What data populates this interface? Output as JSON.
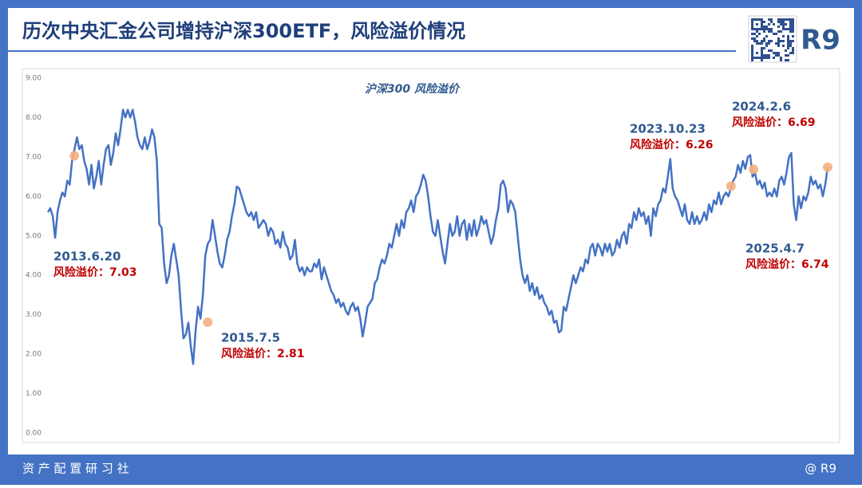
{
  "header": {
    "title": "历次中央汇金公司增持沪深300ETF，风险溢价情况",
    "logo": "R9"
  },
  "footer": {
    "left": "资 产 配 置 研 习 社",
    "right": "@ R9"
  },
  "chart_data": {
    "type": "line",
    "title": "沪深300 风险溢价",
    "color": "#4472c4",
    "ylim": [
      0,
      9
    ],
    "yticks": [
      {
        "value": 0,
        "label": "0.00"
      },
      {
        "value": 1,
        "label": "1.00"
      },
      {
        "value": 2,
        "label": "2.00"
      },
      {
        "value": 3,
        "label": "3.00"
      },
      {
        "value": 4,
        "label": "4.00"
      },
      {
        "value": 5,
        "label": "5.00"
      },
      {
        "value": 6,
        "label": "6.00"
      },
      {
        "value": 7,
        "label": "7.00"
      },
      {
        "value": 8,
        "label": "8.00"
      },
      {
        "value": 9,
        "label": "9.00"
      }
    ],
    "values": [
      5.6,
      5.7,
      5.5,
      4.95,
      5.6,
      5.9,
      6.1,
      6.0,
      6.4,
      6.3,
      6.9,
      7.2,
      7.5,
      7.2,
      7.3,
      6.9,
      6.7,
      6.3,
      6.8,
      6.2,
      6.5,
      6.9,
      6.3,
      6.8,
      7.2,
      7.3,
      6.8,
      7.1,
      7.6,
      7.3,
      7.7,
      8.2,
      8.0,
      8.2,
      8.0,
      8.2,
      7.9,
      7.5,
      7.3,
      7.2,
      7.5,
      7.2,
      7.4,
      7.7,
      7.5,
      6.9,
      5.3,
      5.2,
      4.3,
      3.8,
      4.0,
      4.5,
      4.8,
      4.4,
      4.0,
      3.1,
      2.4,
      2.5,
      2.8,
      2.2,
      1.75,
      2.6,
      3.2,
      2.9,
      3.5,
      4.5,
      4.8,
      4.9,
      5.4,
      5.0,
      4.6,
      4.3,
      4.2,
      4.5,
      4.9,
      5.1,
      5.5,
      5.8,
      6.25,
      6.2,
      6.0,
      5.8,
      5.6,
      5.5,
      5.6,
      5.4,
      5.6,
      5.2,
      5.3,
      5.4,
      5.3,
      5.0,
      5.2,
      5.1,
      4.8,
      4.9,
      4.7,
      5.1,
      4.8,
      4.7,
      4.4,
      4.5,
      4.9,
      4.3,
      4.1,
      4.2,
      4.0,
      4.2,
      4.1,
      4.1,
      4.3,
      4.2,
      4.4,
      3.9,
      4.2,
      4.0,
      3.8,
      3.6,
      3.5,
      3.3,
      3.4,
      3.2,
      3.3,
      3.1,
      3.0,
      3.2,
      3.3,
      3.1,
      3.2,
      2.9,
      2.45,
      2.8,
      3.2,
      3.3,
      3.4,
      3.8,
      3.9,
      4.2,
      4.4,
      4.3,
      4.5,
      4.8,
      4.7,
      5.0,
      5.3,
      5.0,
      5.4,
      5.2,
      5.6,
      5.7,
      5.9,
      5.6,
      6.0,
      6.1,
      6.3,
      6.55,
      6.4,
      6.0,
      5.5,
      5.1,
      5.0,
      5.4,
      5.0,
      4.6,
      4.3,
      4.8,
      5.3,
      5.0,
      5.1,
      5.5,
      5.0,
      5.3,
      5.4,
      4.9,
      5.3,
      5.0,
      5.4,
      5.0,
      5.2,
      5.5,
      5.3,
      5.4,
      5.1,
      4.8,
      5.0,
      5.4,
      5.7,
      6.3,
      6.4,
      6.2,
      5.6,
      5.9,
      5.8,
      5.6,
      5.0,
      4.4,
      4.0,
      3.8,
      4.0,
      3.6,
      3.8,
      3.5,
      3.7,
      3.4,
      3.5,
      3.3,
      3.2,
      3.0,
      3.1,
      2.8,
      2.85,
      2.55,
      2.6,
      3.2,
      3.1,
      3.4,
      3.7,
      4.0,
      3.8,
      4.0,
      4.2,
      4.1,
      4.4,
      4.3,
      4.7,
      4.8,
      4.5,
      4.8,
      4.7,
      4.5,
      4.8,
      4.6,
      4.8,
      4.5,
      4.6,
      4.9,
      4.7,
      5.0,
      5.1,
      4.8,
      5.3,
      5.2,
      5.6,
      5.4,
      5.7,
      5.5,
      5.6,
      5.3,
      5.5,
      5.0,
      5.7,
      5.5,
      5.8,
      5.9,
      6.2,
      6.1,
      6.5,
      6.95,
      6.2,
      6.0,
      5.9,
      5.7,
      5.5,
      5.8,
      5.4,
      5.3,
      5.6,
      5.3,
      5.5,
      5.3,
      5.4,
      5.6,
      5.4,
      5.8,
      5.6,
      5.9,
      5.8,
      6.1,
      5.8,
      6.0,
      6.1,
      6.0,
      6.2,
      6.4,
      6.5,
      6.8,
      6.6,
      6.9,
      6.7,
      7.0,
      7.05,
      6.5,
      6.6,
      6.3,
      6.4,
      6.2,
      6.35,
      6.0,
      6.1,
      6.0,
      6.2,
      6.0,
      6.4,
      6.5,
      6.3,
      6.6,
      7.0,
      7.1,
      5.8,
      5.4,
      6.0,
      5.7,
      6.0,
      5.9,
      6.1,
      6.5,
      6.3,
      6.4,
      6.2,
      6.3,
      6.0,
      6.3,
      6.74
    ],
    "annotations": [
      {
        "date": "2013.6.20",
        "label": "风险溢价：",
        "value": 7.03
      },
      {
        "date": "2015.7.5",
        "label": "风险溢价：",
        "value": 2.81
      },
      {
        "date": "2023.10.23",
        "label": "风险溢价：",
        "value": 6.26
      },
      {
        "date": "2024.2.6",
        "label": "风险溢价：",
        "value": 6.69
      },
      {
        "date": "2025.4.7",
        "label": "风险溢价：",
        "value": 6.74
      }
    ]
  }
}
